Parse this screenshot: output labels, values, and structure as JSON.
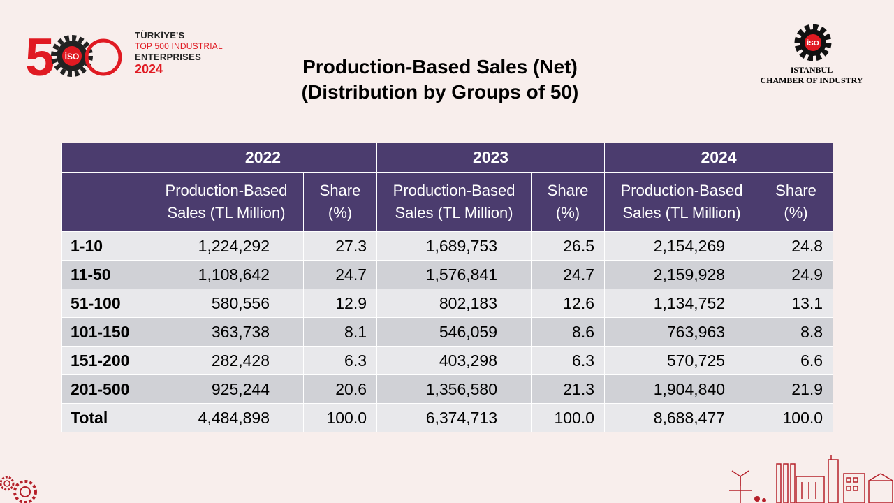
{
  "logo": {
    "number": "500",
    "badge": "İSO",
    "line1": "TÜRKİYE'S",
    "line2": "TOP 500 INDUSTRIAL",
    "line3": "ENTERPRISES",
    "line4": "2024"
  },
  "title": {
    "line1": "Production-Based Sales (Net)",
    "line2": "(Distribution by Groups of 50)"
  },
  "org": {
    "badge": "İSO",
    "line1": "ISTANBUL",
    "line2": "CHAMBER OF INDUSTRY"
  },
  "colors": {
    "header": "#4b3c6e",
    "row_light": "#e8e8eb",
    "row_dark": "#d0d1d6",
    "brand_red": "#e01a22"
  },
  "table": {
    "years": [
      "2022",
      "2023",
      "2024"
    ],
    "sub_headers": {
      "sales_line1": "Production-Based",
      "sales_line2": "Sales (TL Million)",
      "share_line1": "Share",
      "share_line2": "(%)"
    },
    "rows": [
      {
        "group": "1-10",
        "s2022": "1,224,292",
        "p2022": "27.3",
        "s2023": "1,689,753",
        "p2023": "26.5",
        "s2024": "2,154,269",
        "p2024": "24.8"
      },
      {
        "group": "11-50",
        "s2022": "1,108,642",
        "p2022": "24.7",
        "s2023": "1,576,841",
        "p2023": "24.7",
        "s2024": "2,159,928",
        "p2024": "24.9"
      },
      {
        "group": "51-100",
        "s2022": "580,556",
        "p2022": "12.9",
        "s2023": "802,183",
        "p2023": "12.6",
        "s2024": "1,134,752",
        "p2024": "13.1"
      },
      {
        "group": "101-150",
        "s2022": "363,738",
        "p2022": "8.1",
        "s2023": "546,059",
        "p2023": "8.6",
        "s2024": "763,963",
        "p2024": "8.8"
      },
      {
        "group": "151-200",
        "s2022": "282,428",
        "p2022": "6.3",
        "s2023": "403,298",
        "p2023": "6.3",
        "s2024": "570,725",
        "p2024": "6.6"
      },
      {
        "group": "201-500",
        "s2022": "925,244",
        "p2022": "20.6",
        "s2023": "1,356,580",
        "p2023": "21.3",
        "s2024": "1,904,840",
        "p2024": "21.9"
      },
      {
        "group": "Total",
        "s2022": "4,484,898",
        "p2022": "100.0",
        "s2023": "6,374,713",
        "p2023": "100.0",
        "s2024": "8,688,477",
        "p2024": "100.0"
      }
    ]
  }
}
